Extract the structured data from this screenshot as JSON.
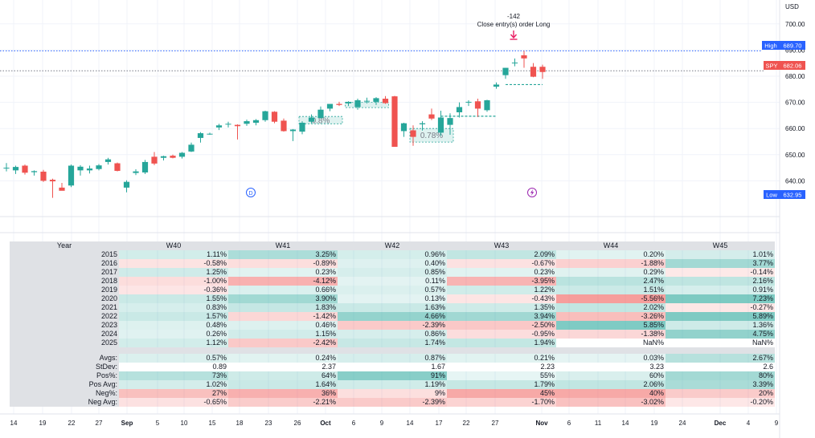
{
  "header": {
    "currency": "USD"
  },
  "annotation": {
    "value_label": "-142",
    "text": "Close entry(s) order Long"
  },
  "price_tags": {
    "high_label": "High",
    "high_value": "689.70",
    "symbol_label": "SPY",
    "symbol_value": "682.06",
    "low_label": "Low",
    "low_value": "632.95"
  },
  "markers": {
    "dividend_letter": "D",
    "split_icon": "lightning-icon"
  },
  "colors": {
    "up": "#26a69a",
    "down": "#ef5350",
    "high_tag": "#2962ff",
    "low_tag": "#2962ff",
    "symbol_tag": "#ef5350",
    "marker": "#9c27b0"
  },
  "chart_data": {
    "type": "candlestick",
    "ylim": [
      630,
      703
    ],
    "y_ticks": [
      "700.00",
      "690.00",
      "680.00",
      "670.00",
      "660.00",
      "650.00",
      "640.00"
    ],
    "x_tick_labels": [
      "14",
      "19",
      "22",
      "27",
      "Sep",
      "5",
      "10",
      "15",
      "18",
      "23",
      "26",
      "Oct",
      "6",
      "9",
      "14",
      "17",
      "22",
      "27",
      "Nov",
      "6",
      "11",
      "14",
      "19",
      "24",
      "Dec",
      "4",
      "9"
    ],
    "high_line": 689.7,
    "last_price_line": 682.06,
    "candles": [
      {
        "o": 645.0,
        "h": 646.8,
        "l": 643.6,
        "c": 645.0
      },
      {
        "o": 644.0,
        "h": 645.8,
        "l": 642.6,
        "c": 645.3
      },
      {
        "o": 645.8,
        "h": 646.2,
        "l": 642.4,
        "c": 643.1
      },
      {
        "o": 643.3,
        "h": 644.0,
        "l": 642.0,
        "c": 643.7
      },
      {
        "o": 643.5,
        "h": 644.2,
        "l": 639.6,
        "c": 640.0
      },
      {
        "o": 640.4,
        "h": 640.8,
        "l": 633.5,
        "c": 639.8
      },
      {
        "o": 637.4,
        "h": 639.2,
        "l": 636.4,
        "c": 636.2
      },
      {
        "o": 638.2,
        "h": 646.2,
        "l": 637.6,
        "c": 645.8
      },
      {
        "o": 644.0,
        "h": 646.0,
        "l": 642.0,
        "c": 645.4
      },
      {
        "o": 644.0,
        "h": 645.8,
        "l": 642.8,
        "c": 644.7
      },
      {
        "o": 644.5,
        "h": 646.4,
        "l": 644.0,
        "c": 645.9
      },
      {
        "o": 647.2,
        "h": 648.8,
        "l": 646.2,
        "c": 648.2
      },
      {
        "o": 646.7,
        "h": 647.0,
        "l": 643.6,
        "c": 643.8
      },
      {
        "o": 637.4,
        "h": 640.2,
        "l": 635.6,
        "c": 639.6
      },
      {
        "o": 643.0,
        "h": 644.4,
        "l": 642.2,
        "c": 643.6
      },
      {
        "o": 643.2,
        "h": 648.0,
        "l": 642.6,
        "c": 647.2
      },
      {
        "o": 649.2,
        "h": 651.0,
        "l": 646.0,
        "c": 646.6
      },
      {
        "o": 648.8,
        "h": 649.6,
        "l": 647.8,
        "c": 649.4
      },
      {
        "o": 649.6,
        "h": 650.0,
        "l": 648.6,
        "c": 648.8
      },
      {
        "o": 649.2,
        "h": 651.0,
        "l": 648.5,
        "c": 650.7
      },
      {
        "o": 651.2,
        "h": 654.6,
        "l": 651.0,
        "c": 653.8
      },
      {
        "o": 656.4,
        "h": 658.6,
        "l": 654.6,
        "c": 658.2
      },
      {
        "o": 657.9,
        "h": 658.4,
        "l": 657.6,
        "c": 658.0
      },
      {
        "o": 660.4,
        "h": 661.8,
        "l": 659.4,
        "c": 661.2
      },
      {
        "o": 661.7,
        "h": 662.6,
        "l": 660.4,
        "c": 661.8
      },
      {
        "o": 661.4,
        "h": 661.6,
        "l": 655.8,
        "c": 660.9
      },
      {
        "o": 661.8,
        "h": 663.4,
        "l": 661.0,
        "c": 662.8
      },
      {
        "o": 662.2,
        "h": 663.6,
        "l": 661.2,
        "c": 663.2
      },
      {
        "o": 663.2,
        "h": 666.8,
        "l": 662.6,
        "c": 666.6
      },
      {
        "o": 666.4,
        "h": 666.6,
        "l": 662.0,
        "c": 662.6
      },
      {
        "o": 663.0,
        "h": 663.8,
        "l": 658.8,
        "c": 659.0
      },
      {
        "o": 659.0,
        "h": 659.8,
        "l": 655.2,
        "c": 659.6
      },
      {
        "o": 658.8,
        "h": 662.8,
        "l": 657.8,
        "c": 662.2
      },
      {
        "o": 662.6,
        "h": 665.4,
        "l": 662.0,
        "c": 664.2
      },
      {
        "o": 664.0,
        "h": 668.4,
        "l": 663.8,
        "c": 667.2
      },
      {
        "o": 667.6,
        "h": 669.0,
        "l": 666.6,
        "c": 669.4
      },
      {
        "o": 669.4,
        "h": 670.2,
        "l": 668.6,
        "c": 669.0
      },
      {
        "o": 669.6,
        "h": 670.4,
        "l": 668.6,
        "c": 670.2
      },
      {
        "o": 668.2,
        "h": 671.4,
        "l": 667.2,
        "c": 670.8
      },
      {
        "o": 670.4,
        "h": 671.8,
        "l": 669.6,
        "c": 670.6
      },
      {
        "o": 670.2,
        "h": 672.0,
        "l": 669.0,
        "c": 671.6
      },
      {
        "o": 671.4,
        "h": 672.4,
        "l": 669.4,
        "c": 669.7
      },
      {
        "o": 672.3,
        "h": 672.5,
        "l": 653.0,
        "c": 653.0
      },
      {
        "o": 659.0,
        "h": 662.2,
        "l": 656.8,
        "c": 662.0
      },
      {
        "o": 659.3,
        "h": 661.2,
        "l": 653.4,
        "c": 656.8
      },
      {
        "o": 661.6,
        "h": 662.8,
        "l": 659.2,
        "c": 662.0
      },
      {
        "o": 665.4,
        "h": 667.6,
        "l": 663.2,
        "c": 663.8
      },
      {
        "o": 658.4,
        "h": 666.8,
        "l": 657.2,
        "c": 664.2
      },
      {
        "o": 661.4,
        "h": 665.8,
        "l": 657.6,
        "c": 664.0
      },
      {
        "o": 666.2,
        "h": 670.0,
        "l": 664.2,
        "c": 668.2
      },
      {
        "o": 670.0,
        "h": 670.8,
        "l": 668.6,
        "c": 670.2
      },
      {
        "o": 670.4,
        "h": 671.4,
        "l": 664.4,
        "c": 667.6
      },
      {
        "o": 667.0,
        "h": 671.0,
        "l": 666.4,
        "c": 670.8
      },
      {
        "o": 676.0,
        "h": 677.6,
        "l": 675.2,
        "c": 676.8
      },
      {
        "o": 680.4,
        "h": 683.2,
        "l": 679.0,
        "c": 683.2
      },
      {
        "o": 685.0,
        "h": 686.8,
        "l": 683.8,
        "c": 685.2
      },
      {
        "o": 688.0,
        "h": 689.7,
        "l": 683.2,
        "c": 686.8
      },
      {
        "o": 683.6,
        "h": 685.0,
        "l": 679.6,
        "c": 679.8
      },
      {
        "o": 683.6,
        "h": 684.4,
        "l": 679.0,
        "c": 681.6
      }
    ],
    "trade_boxes": [
      {
        "label": "",
        "start": 37,
        "end": 41,
        "top": 670.0,
        "bottom": 668.0
      },
      {
        "label": "0.78%",
        "start": 44,
        "end": 48,
        "top": 660.0,
        "bottom": 654.8
      },
      {
        "label": "0.8%",
        "start": 32,
        "end": 36,
        "top": 664.6,
        "bottom": 661.8
      }
    ],
    "target_lines": [
      {
        "start": 47,
        "end": 53,
        "value": 664.7
      },
      {
        "start": 54,
        "end": 58,
        "value": 676.8
      }
    ],
    "seasonals": {
      "columns": [
        "Year",
        "W40",
        "W41",
        "W42",
        "W43",
        "W44",
        "W45"
      ],
      "years": [
        "2015",
        "2016",
        "2017",
        "2018",
        "2019",
        "2020",
        "2021",
        "2022",
        "2023",
        "2024",
        "2025"
      ],
      "values": [
        [
          "1.11%",
          "3.25%",
          "0.96%",
          "2.09%",
          "0.20%",
          "1.01%"
        ],
        [
          "-0.58%",
          "-0.89%",
          "0.40%",
          "-0.67%",
          "-1.88%",
          "3.77%"
        ],
        [
          "1.25%",
          "0.23%",
          "0.85%",
          "0.23%",
          "0.29%",
          "-0.14%"
        ],
        [
          "-1.00%",
          "-4.12%",
          "0.11%",
          "-3.95%",
          "2.47%",
          "2.16%"
        ],
        [
          "-0.36%",
          "0.66%",
          "0.57%",
          "1.22%",
          "1.51%",
          "0.91%"
        ],
        [
          "1.55%",
          "3.90%",
          "0.13%",
          "-0.43%",
          "-5.56%",
          "7.23%"
        ],
        [
          "0.83%",
          "1.83%",
          "1.63%",
          "1.35%",
          "2.02%",
          "-0.27%"
        ],
        [
          "1.57%",
          "-1.42%",
          "4.66%",
          "3.94%",
          "-3.26%",
          "5.89%"
        ],
        [
          "0.48%",
          "0.46%",
          "-2.39%",
          "-2.50%",
          "5.85%",
          "1.36%"
        ],
        [
          "0.26%",
          "1.15%",
          "0.86%",
          "-0.95%",
          "-1.38%",
          "4.75%"
        ],
        [
          "1.12%",
          "-2.42%",
          "1.74%",
          "1.94%",
          "NaN%",
          "NaN%"
        ]
      ],
      "stat_labels": [
        "Avgs:",
        "StDev:",
        "Pos%:",
        "Pos Avg:",
        "Neg%:",
        "Neg Avg:"
      ],
      "stats": [
        [
          "0.57%",
          "0.24%",
          "0.87%",
          "0.21%",
          "0.03%",
          "2.67%"
        ],
        [
          "0.89",
          "2.37",
          "1.67",
          "2.23",
          "3.23",
          "2.6"
        ],
        [
          "73%",
          "64%",
          "91%",
          "55%",
          "60%",
          "80%"
        ],
        [
          "1.02%",
          "1.64%",
          "1.19%",
          "1.79%",
          "2.06%",
          "3.39%"
        ],
        [
          "27%",
          "36%",
          "9%",
          "45%",
          "40%",
          "20%"
        ],
        [
          "-0.65%",
          "-2.21%",
          "-2.39%",
          "-1.70%",
          "-3.02%",
          "-0.20%"
        ]
      ]
    }
  }
}
